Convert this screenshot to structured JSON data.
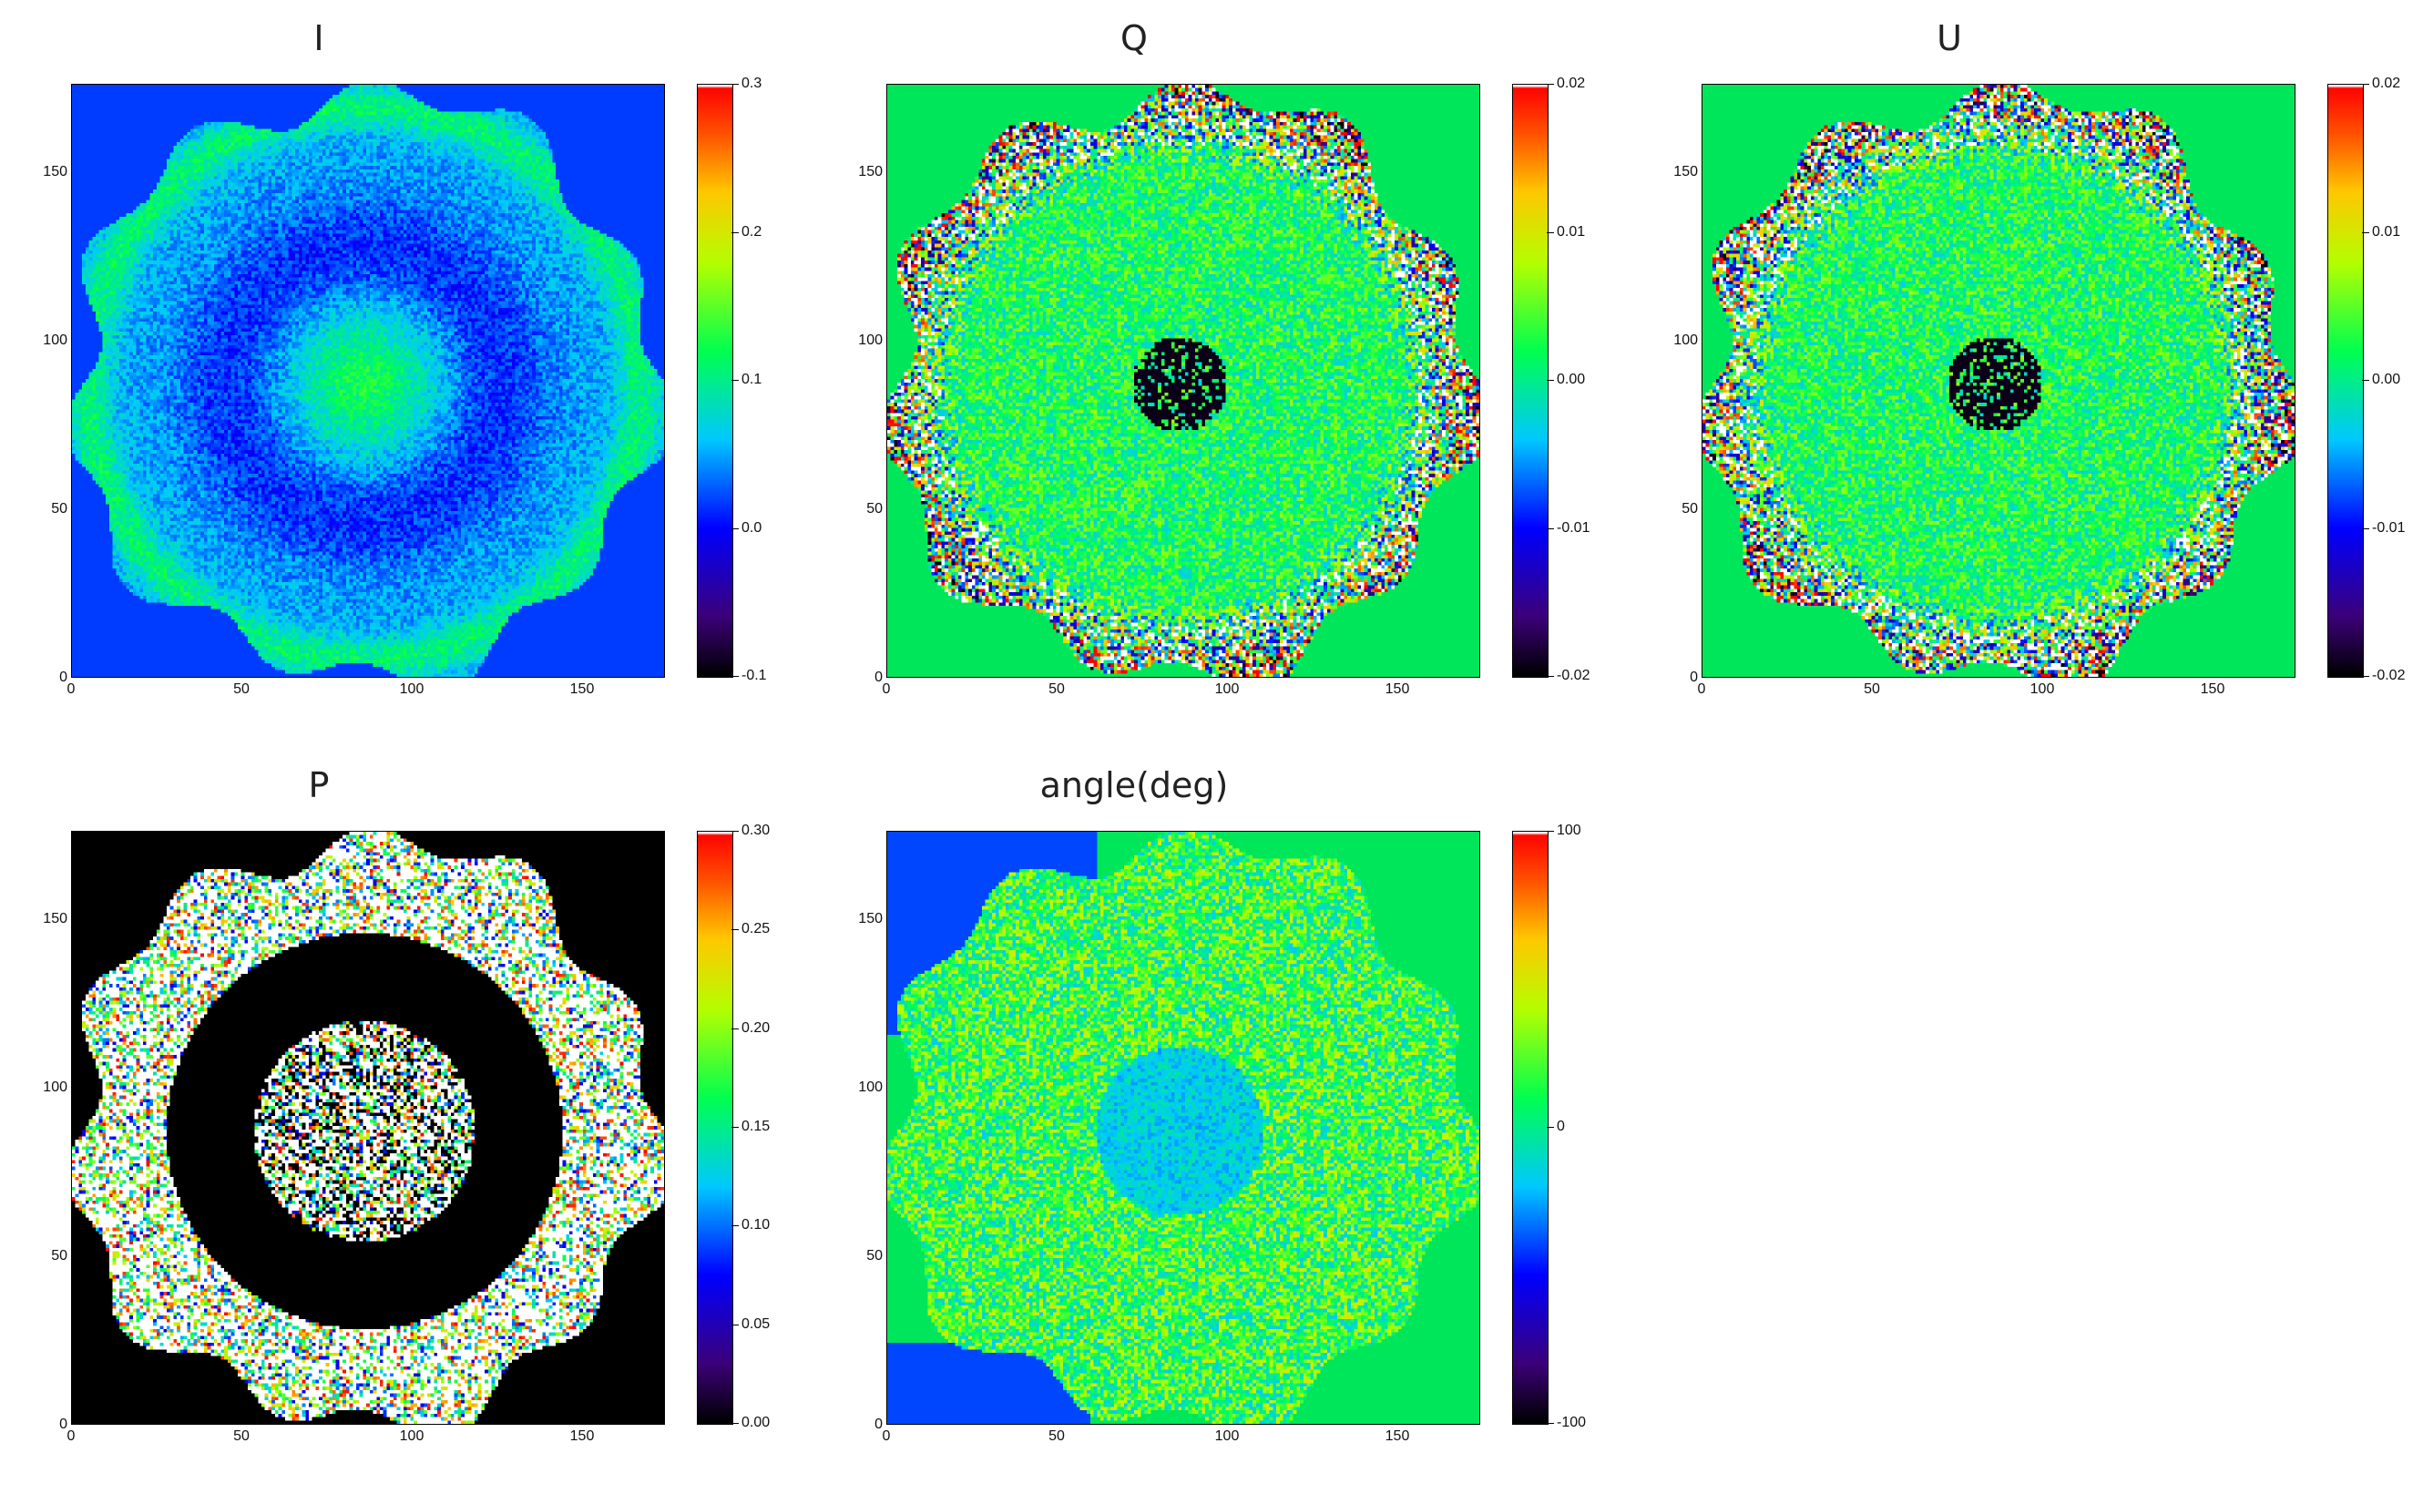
{
  "figure": {
    "panels": [
      {
        "id": "I",
        "title": "I",
        "x_ticks": [
          "0",
          "50",
          "100",
          "150"
        ],
        "y_ticks": [
          "0",
          "50",
          "100",
          "150"
        ],
        "colorbar_ticks": [
          "0.3",
          "0.2",
          "0.1",
          "0.0",
          "-0.1"
        ],
        "palette": "rainbow-lowblue"
      },
      {
        "id": "Q",
        "title": "Q",
        "x_ticks": [
          "0",
          "50",
          "100",
          "150"
        ],
        "y_ticks": [
          "0",
          "50",
          "100",
          "150"
        ],
        "colorbar_ticks": [
          "0.02",
          "0.01",
          "0.00",
          "-0.01",
          "-0.02"
        ],
        "palette": "rainbow-green-bg"
      },
      {
        "id": "U",
        "title": "U",
        "x_ticks": [
          "0",
          "50",
          "100",
          "150"
        ],
        "y_ticks": [
          "0",
          "50",
          "100",
          "150"
        ],
        "colorbar_ticks": [
          "0.02",
          "0.01",
          "0.00",
          "-0.01",
          "-0.02"
        ],
        "palette": "rainbow-green-bg"
      },
      {
        "id": "P",
        "title": "P",
        "x_ticks": [
          "0",
          "50",
          "100",
          "150"
        ],
        "y_ticks": [
          "0",
          "50",
          "100",
          "150"
        ],
        "colorbar_ticks": [
          "0.30",
          "0.25",
          "0.20",
          "0.15",
          "0.10",
          "0.05",
          "0.00"
        ],
        "palette": "black-white-ring"
      },
      {
        "id": "angle",
        "title": "angle(deg)",
        "x_ticks": [
          "0",
          "50",
          "100",
          "150"
        ],
        "y_ticks": [
          "0",
          "50",
          "100",
          "150"
        ],
        "colorbar_ticks": [
          "100",
          "0",
          "-100"
        ],
        "palette": "rainbow-angle"
      }
    ]
  }
}
